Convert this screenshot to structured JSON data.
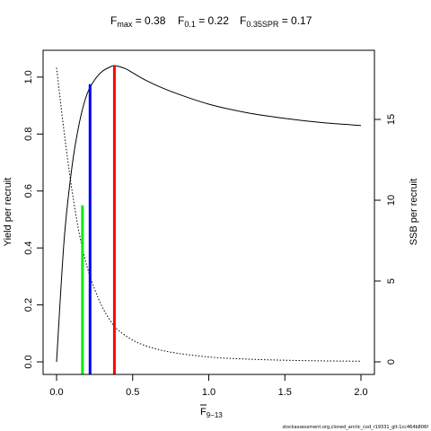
{
  "title": {
    "fmax": {
      "base": "F",
      "sub": "max",
      "eq": " = 0.38"
    },
    "f01": {
      "base": "F",
      "sub": "0.1",
      "eq": " = 0.22"
    },
    "fspr": {
      "base": "F",
      "sub": "0.35SPR",
      "eq": " = 0.17"
    }
  },
  "footer": "stockassessment.org,cloned_arctic_cod_r19331_git:1cc464b806f",
  "chart_data": {
    "type": "line",
    "xlabel": {
      "base": "F",
      "sub": "9−13"
    },
    "ylabel_left": "Yield per recruit",
    "ylabel_right": "SSB per recruit",
    "xlim": [
      0,
      2
    ],
    "ylim_left": [
      0,
      1.05
    ],
    "ylim_right": [
      0,
      18.5
    ],
    "x_ticks": [
      0,
      0.5,
      1.0,
      1.5,
      2.0
    ],
    "x_tick_labels": [
      "0.0",
      "0.5",
      "1.0",
      "1.5",
      "2.0"
    ],
    "y_left_ticks": [
      0,
      0.2,
      0.4,
      0.6,
      0.8,
      1.0
    ],
    "y_left_tick_labels": [
      "0.0",
      "0.2",
      "0.4",
      "0.6",
      "0.8",
      "1.0"
    ],
    "y_right_ticks": [
      0,
      5,
      10,
      15
    ],
    "y_right_tick_labels": [
      "0",
      "5",
      "10",
      "15"
    ],
    "grid": false,
    "series": [
      {
        "axis": "left",
        "style": "solid",
        "color": "#000000",
        "x": [
          0,
          0.05,
          0.1,
          0.15,
          0.2,
          0.25,
          0.3,
          0.35,
          0.38,
          0.45,
          0.5,
          0.6,
          0.75,
          1.0,
          1.25,
          1.5,
          1.75,
          2.0
        ],
        "y": [
          0,
          0.43,
          0.68,
          0.84,
          0.94,
          0.99,
          1.02,
          1.035,
          1.04,
          1.03,
          1.015,
          0.985,
          0.95,
          0.905,
          0.875,
          0.855,
          0.84,
          0.83
        ]
      },
      {
        "axis": "right",
        "style": "dotted",
        "color": "#000000",
        "x": [
          0,
          0.05,
          0.1,
          0.15,
          0.2,
          0.25,
          0.3,
          0.35,
          0.4,
          0.5,
          0.6,
          0.75,
          1.0,
          1.25,
          1.5,
          1.75,
          2.0
        ],
        "y": [
          18.2,
          14.2,
          10.7,
          7.9,
          5.9,
          4.5,
          3.4,
          2.6,
          2.0,
          1.35,
          0.95,
          0.6,
          0.3,
          0.17,
          0.1,
          0.06,
          0.04
        ]
      }
    ],
    "reference_lines": [
      {
        "name": "F0.35SPR",
        "x": 0.17,
        "y": 0.55,
        "color": "#00ee00"
      },
      {
        "name": "F0.1",
        "x": 0.22,
        "y": 0.975,
        "color": "#0000ff"
      },
      {
        "name": "Fmax",
        "x": 0.38,
        "y": 1.04,
        "color": "#ff0000"
      }
    ]
  }
}
